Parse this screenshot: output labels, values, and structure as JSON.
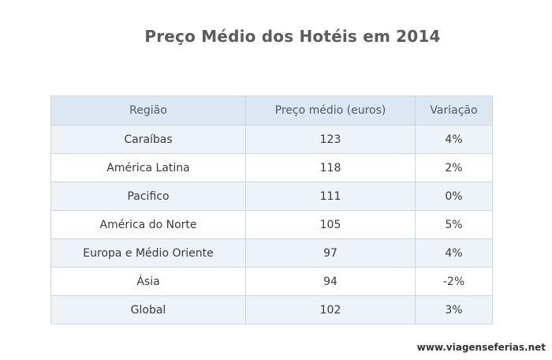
{
  "title": "Preço Médio dos Hotéis em 2014",
  "table": {
    "headers": [
      "Região",
      "Preço médio (euros)",
      "Variação"
    ],
    "rows": [
      [
        "Caraíbas",
        "123",
        "4%"
      ],
      [
        "América Latina",
        "118",
        "2%"
      ],
      [
        "Pacifico",
        "111",
        "0%"
      ],
      [
        "América do Norte",
        "105",
        "5%"
      ],
      [
        "Europa e Médio Oriente",
        "97",
        "4%"
      ],
      [
        "Ásia",
        "94",
        "-2%"
      ],
      [
        "Global",
        "102",
        "3%"
      ]
    ]
  },
  "footer": {
    "url": "www.viagenseferias.net"
  },
  "colors": {
    "header_bg": "#dde7f1",
    "row_alt_bg": "#eef3f9",
    "border": "#c9d6e3",
    "title": "#5b5b5b"
  }
}
